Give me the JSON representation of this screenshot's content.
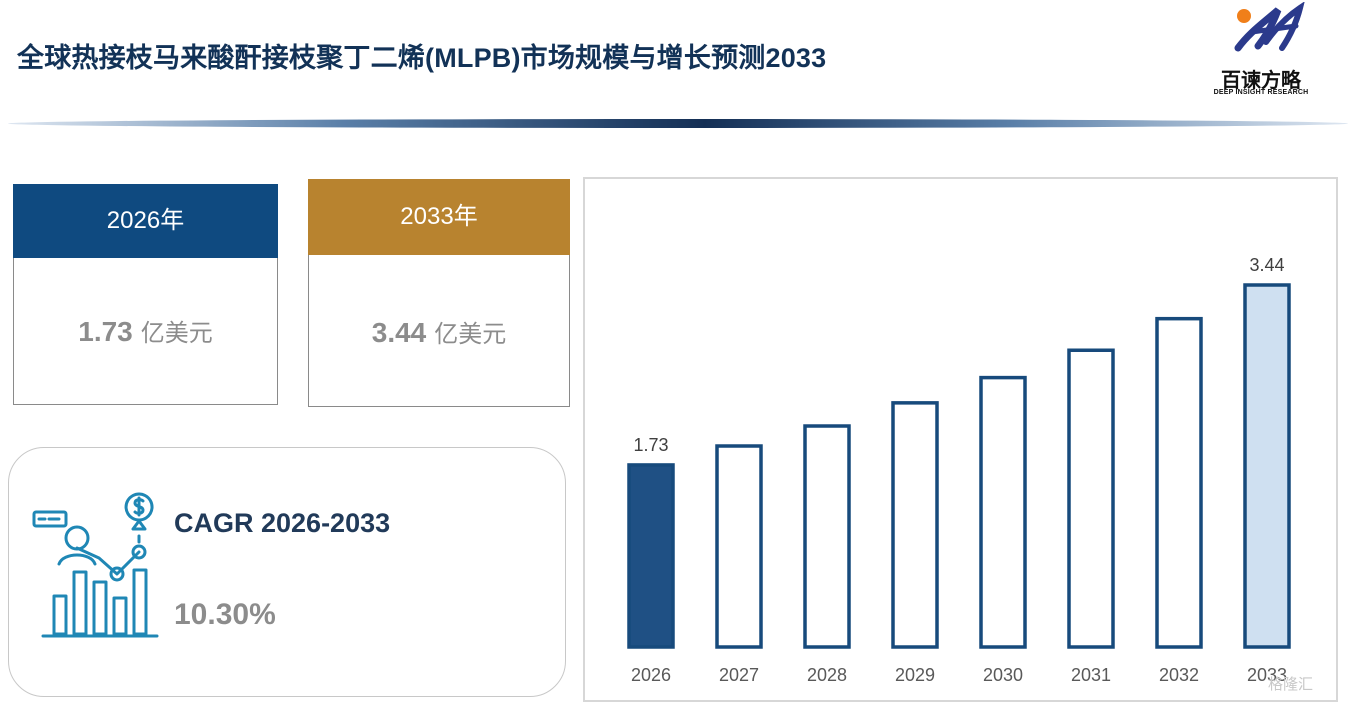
{
  "header": {
    "title": "全球热接枝马来酸酐接枝聚丁二烯(MLPB)市场规模与增长预测2033"
  },
  "logo": {
    "name": "百谏方略",
    "tagline": "DEEP INSIGHT RESEARCH",
    "icon": "brand-swirl-icon"
  },
  "cards": [
    {
      "year_label": "2026年",
      "value": "1.73",
      "unit": "亿美元",
      "color": "#0f4a80"
    },
    {
      "year_label": "2033年",
      "value": "3.44",
      "unit": "亿美元",
      "color": "#b8832f"
    }
  ],
  "cagr": {
    "label": "CAGR 2026-2033",
    "value": "10.30%",
    "icon": "growth-chart-icon"
  },
  "watermark": "格隆汇",
  "chart_data": {
    "type": "bar",
    "categories": [
      "2026",
      "2027",
      "2028",
      "2029",
      "2030",
      "2031",
      "2032",
      "2033"
    ],
    "values": [
      1.73,
      1.91,
      2.1,
      2.32,
      2.56,
      2.82,
      3.12,
      3.44
    ],
    "data_labels": [
      "1.73",
      "",
      "",
      "",
      "",
      "",
      "",
      "3.44"
    ],
    "title": "",
    "xlabel": "",
    "ylabel": "",
    "ylim": [
      0,
      3.44
    ],
    "grid": false,
    "legend": "none",
    "colors": {
      "outline": "#174a7c",
      "first_fill": "#1f5084",
      "last_fill": "#cfe0f1",
      "default_fill": "#ffffff"
    }
  }
}
